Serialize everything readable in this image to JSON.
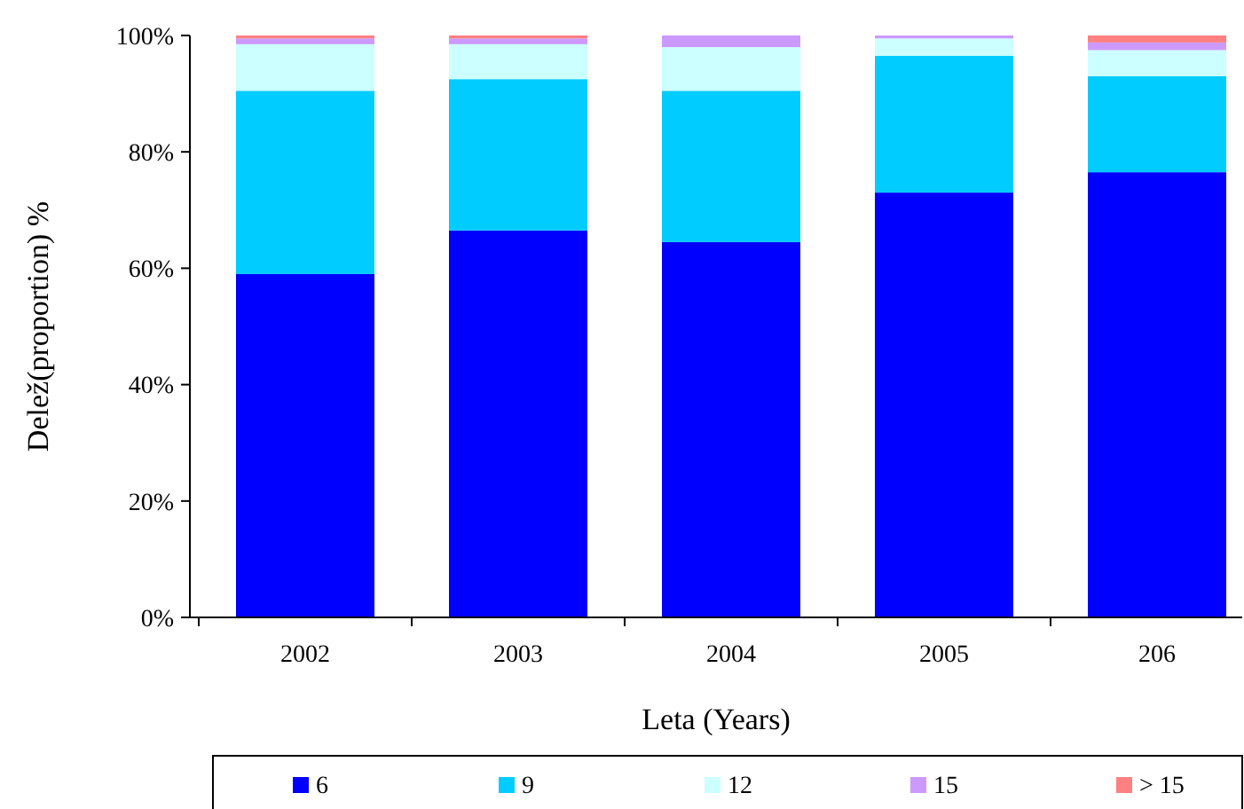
{
  "chart_data": {
    "type": "bar",
    "stacked": true,
    "xlabel": "Leta (Years)",
    "ylabel": "Delež(proportion)  %",
    "categories": [
      "2002",
      "2003",
      "2004",
      "2005",
      "206"
    ],
    "series": [
      {
        "name": "6",
        "color": "#0000ff",
        "values": [
          59,
          66.5,
          64.5,
          73,
          76.5
        ]
      },
      {
        "name": "9",
        "color": "#00ccff",
        "values": [
          31.5,
          26,
          26,
          23.5,
          16.5
        ]
      },
      {
        "name": "12",
        "color": "#ccffff",
        "values": [
          8,
          6,
          7.5,
          3,
          4.5
        ]
      },
      {
        "name": "15",
        "color": "#cc99ff",
        "values": [
          1,
          1,
          2,
          0.5,
          1.3
        ]
      },
      {
        "name": "> 15",
        "color": "#ff8080",
        "values": [
          0.5,
          0.5,
          0,
          0,
          1.2
        ]
      }
    ],
    "ylim": [
      0,
      100
    ],
    "yticks": [
      {
        "value": 0,
        "label": "0%"
      },
      {
        "value": 20,
        "label": "20%"
      },
      {
        "value": 40,
        "label": "40%"
      },
      {
        "value": 60,
        "label": "60%"
      },
      {
        "value": 80,
        "label": "80%"
      },
      {
        "value": 100,
        "label": "100%"
      }
    ],
    "grid": false,
    "legend": "bottom"
  }
}
